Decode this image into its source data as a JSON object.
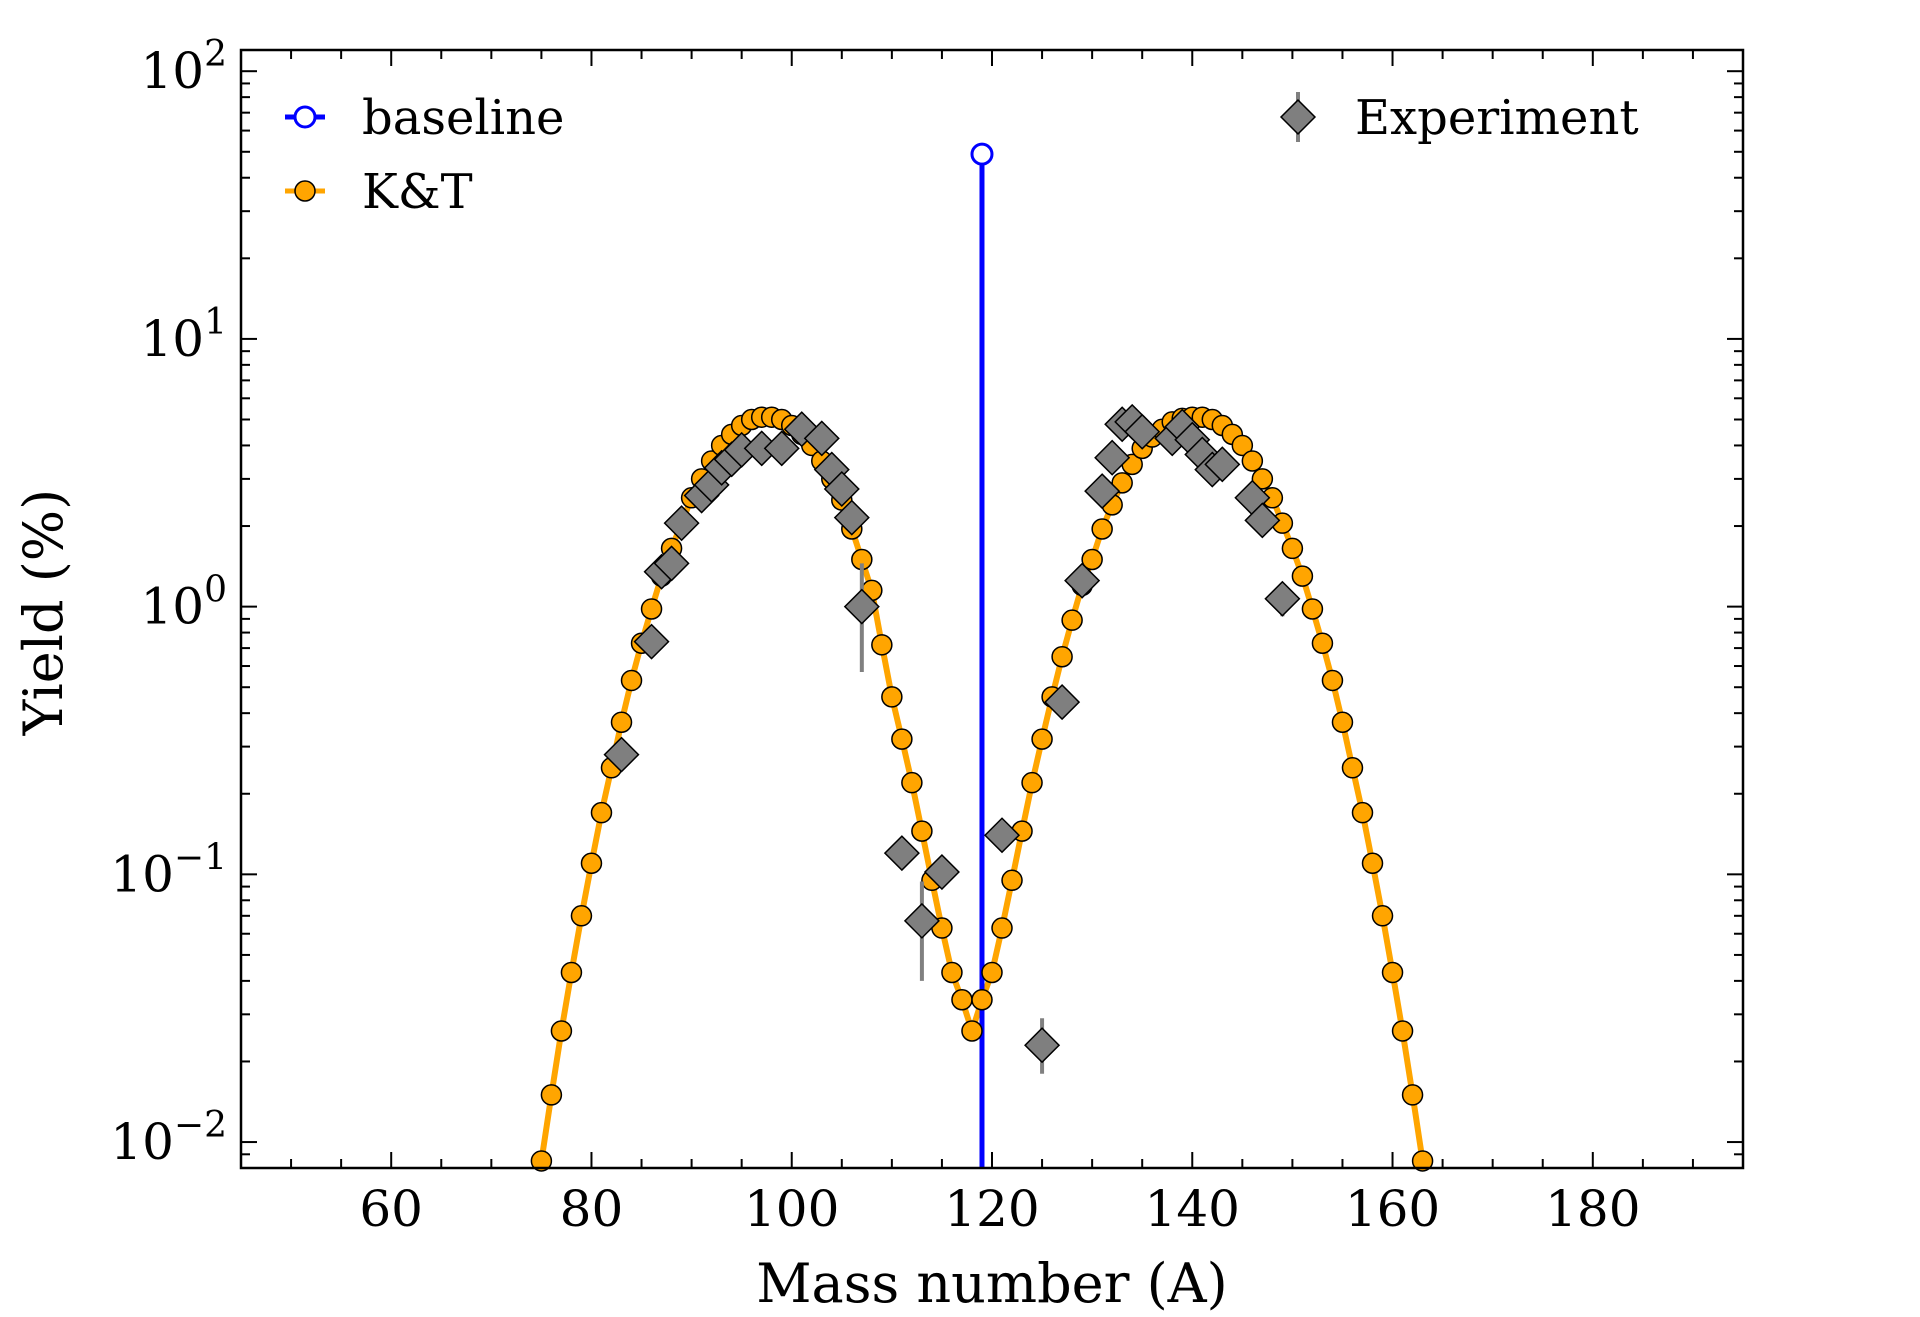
{
  "chart_data": {
    "type": "scatter",
    "xlabel": "Mass number (A)",
    "ylabel": "Yield (%)",
    "xlim": [
      45,
      195
    ],
    "ylim": [
      0.008,
      120
    ],
    "yscale": "log",
    "x_ticks": [
      60,
      80,
      100,
      120,
      140,
      160,
      180
    ],
    "x_tick_labels": [
      "60",
      "80",
      "100",
      "120",
      "140",
      "160",
      "180"
    ],
    "y_ticks": [
      {
        "value": 100,
        "base": "10",
        "exp": "2"
      },
      {
        "value": 10,
        "base": "10",
        "exp": "1"
      },
      {
        "value": 1,
        "base": "10",
        "exp": "0"
      },
      {
        "value": 0.1,
        "base": "10",
        "exp": "−1"
      },
      {
        "value": 0.01,
        "base": "10",
        "exp": "−2"
      }
    ],
    "grid": false,
    "legend_left_placement": "top-left",
    "legend_right_placement": "top-right",
    "colors": {
      "baseline": "#0000ff",
      "kt": "#ffa500",
      "kt_marker_edge": "#000000",
      "experiment": "#7f7f7f",
      "experiment_edge": "#000000",
      "errorbar": "#808080"
    },
    "series": [
      {
        "name": "baseline",
        "style": "stem, open circle marker",
        "x": [
          119
        ],
        "y": [
          49
        ]
      },
      {
        "name": "K&T",
        "style": "line with circle markers",
        "x": [
          75,
          76,
          77,
          78,
          79,
          80,
          81,
          82,
          83,
          84,
          85,
          86,
          87,
          88,
          89,
          90,
          91,
          92,
          93,
          94,
          95,
          96,
          97,
          98,
          99,
          100,
          101,
          102,
          103,
          104,
          105,
          106,
          107,
          108,
          109,
          110,
          111,
          112,
          113,
          114,
          115,
          116,
          117,
          118,
          119,
          120,
          121,
          122,
          123,
          124,
          125,
          126,
          127,
          128,
          129,
          130,
          131,
          132,
          133,
          134,
          135,
          136,
          137,
          138,
          139,
          140,
          141,
          142,
          143,
          144,
          145,
          146,
          147,
          148,
          149,
          150,
          151,
          152,
          153,
          154,
          155,
          156,
          157,
          158,
          159,
          160,
          161,
          162,
          163
        ],
        "y": [
          0.0085,
          0.015,
          0.026,
          0.043,
          0.07,
          0.11,
          0.17,
          0.25,
          0.37,
          0.53,
          0.73,
          0.98,
          1.3,
          1.65,
          2.05,
          2.55,
          3.0,
          3.5,
          4.0,
          4.4,
          4.75,
          5.0,
          5.1,
          5.1,
          5.0,
          4.75,
          4.4,
          4.0,
          3.5,
          3.0,
          2.5,
          1.95,
          1.5,
          1.15,
          0.72,
          0.46,
          0.32,
          0.22,
          0.145,
          0.095,
          0.063,
          0.043,
          0.034,
          0.026,
          0.034,
          0.043,
          0.063,
          0.095,
          0.145,
          0.22,
          0.32,
          0.46,
          0.65,
          0.89,
          1.2,
          1.5,
          1.95,
          2.4,
          2.9,
          3.4,
          3.9,
          4.3,
          4.6,
          4.9,
          5.05,
          5.1,
          5.1,
          5.0,
          4.75,
          4.4,
          4.0,
          3.5,
          3.0,
          2.55,
          2.05,
          1.65,
          1.3,
          0.98,
          0.73,
          0.53,
          0.37,
          0.25,
          0.17,
          0.11,
          0.07,
          0.043,
          0.026,
          0.015,
          0.0085
        ]
      },
      {
        "name": "Experiment",
        "style": "diamond markers with vertical error bars",
        "x": [
          83,
          86,
          87,
          88,
          89,
          91,
          92,
          93,
          94,
          95,
          97,
          99,
          101,
          103,
          104,
          105,
          106,
          107,
          111,
          113,
          115,
          121,
          125,
          127,
          129,
          131,
          132,
          133,
          134,
          135,
          138,
          139,
          140,
          141,
          142,
          143,
          146,
          147,
          149
        ],
        "y": [
          0.28,
          0.74,
          1.35,
          1.45,
          2.05,
          2.6,
          2.85,
          3.3,
          3.55,
          3.85,
          3.9,
          3.9,
          4.6,
          4.25,
          3.25,
          2.75,
          2.15,
          1.0,
          0.12,
          0.067,
          0.102,
          0.14,
          0.023,
          0.44,
          1.25,
          2.7,
          3.6,
          4.8,
          4.9,
          4.5,
          4.25,
          4.7,
          4.2,
          3.7,
          3.25,
          3.4,
          2.55,
          2.1,
          1.07
        ],
        "err_low": [
          0,
          0,
          0,
          0,
          0,
          0,
          0,
          0,
          0,
          0,
          0,
          0,
          0,
          0,
          0,
          0,
          0,
          0.43,
          0,
          0.027,
          0,
          0,
          0.005,
          0,
          0,
          0,
          0,
          0,
          0,
          0,
          0,
          0,
          0,
          0,
          0,
          0,
          0,
          0,
          0.15
        ],
        "err_high": [
          0,
          0,
          0,
          0,
          0,
          0,
          0,
          0,
          0,
          0,
          0,
          0,
          0,
          0,
          0,
          0,
          0,
          0.45,
          0,
          0.027,
          0,
          0,
          0.006,
          0,
          0,
          0,
          0,
          0,
          0,
          0,
          0,
          0,
          0,
          0,
          0,
          0,
          0,
          0,
          0.15
        ]
      }
    ]
  }
}
